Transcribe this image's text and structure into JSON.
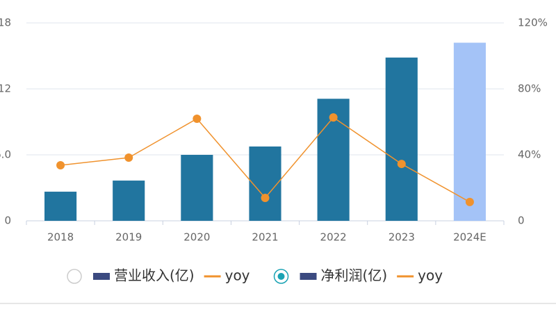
{
  "chart_data": {
    "type": "bar",
    "categories": [
      "2018",
      "2019",
      "2020",
      "2021",
      "2022",
      "2023",
      "2024E"
    ],
    "series": [
      {
        "name": "净利润(亿)",
        "type": "bar",
        "colors": [
          "#21759f",
          "#21759f",
          "#21759f",
          "#21759f",
          "#21759f",
          "#21759f",
          "#a4c3f7"
        ],
        "values": [
          2.65,
          3.66,
          6.0,
          6.76,
          11.1,
          14.85,
          16.2
        ]
      },
      {
        "name": "yoy",
        "type": "line",
        "axis": "y2",
        "color": "#f0922d",
        "values": [
          33.7,
          38.3,
          61.9,
          13.9,
          62.7,
          34.5,
          11.4
        ]
      }
    ],
    "ylim": [
      0,
      18
    ],
    "yticks": [
      0,
      {
        "value": 6,
        "label": "6.0"
      },
      12,
      18
    ],
    "y2lim": [
      0,
      120
    ],
    "y2ticks": [
      0,
      {
        "value": 40,
        "label": "40%"
      },
      {
        "value": 80,
        "label": "80%"
      },
      {
        "value": 120,
        "label": "120%"
      }
    ],
    "grid": true,
    "legend": [
      {
        "selected": false,
        "entries": [
          {
            "name": "营业收入(亿)",
            "kind": "bar",
            "color": "#3b4a80"
          },
          {
            "name": "yoy",
            "kind": "line",
            "color": "#f0922d"
          }
        ]
      },
      {
        "selected": true,
        "entries": [
          {
            "name": "净利润(亿)",
            "kind": "bar",
            "color": "#3b4a80"
          },
          {
            "name": "yoy",
            "kind": "line",
            "color": "#f0922d"
          }
        ]
      }
    ]
  }
}
